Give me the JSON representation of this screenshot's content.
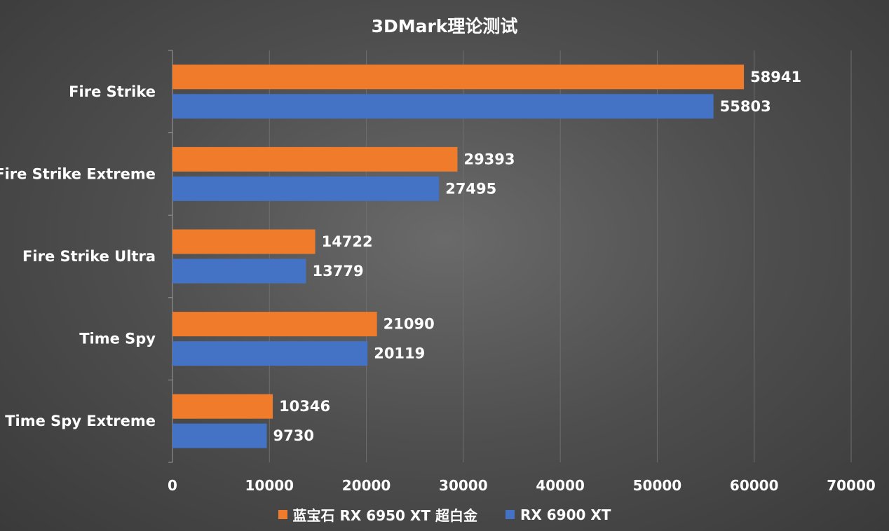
{
  "chart_data": {
    "type": "bar",
    "orientation": "horizontal",
    "title": "3DMark理论测试",
    "categories": [
      "Fire Strike",
      "Fire Strike Extreme",
      "Fire Strike Ultra",
      "Time Spy",
      "Time Spy Extreme"
    ],
    "series": [
      {
        "name": "蓝宝石 RX 6950 XT 超白金",
        "color": "#f07b2a",
        "values": [
          58941,
          29393,
          14722,
          21090,
          10346
        ]
      },
      {
        "name": "RX 6900 XT",
        "color": "#4472c4",
        "values": [
          55803,
          27495,
          13779,
          20119,
          9730
        ]
      }
    ],
    "xlim": [
      0,
      70000
    ],
    "xticks": [
      "0",
      "10000",
      "20000",
      "30000",
      "40000",
      "50000",
      "60000",
      "70000"
    ],
    "grid": "vertical",
    "legend_position": "bottom",
    "data_labels": true
  }
}
